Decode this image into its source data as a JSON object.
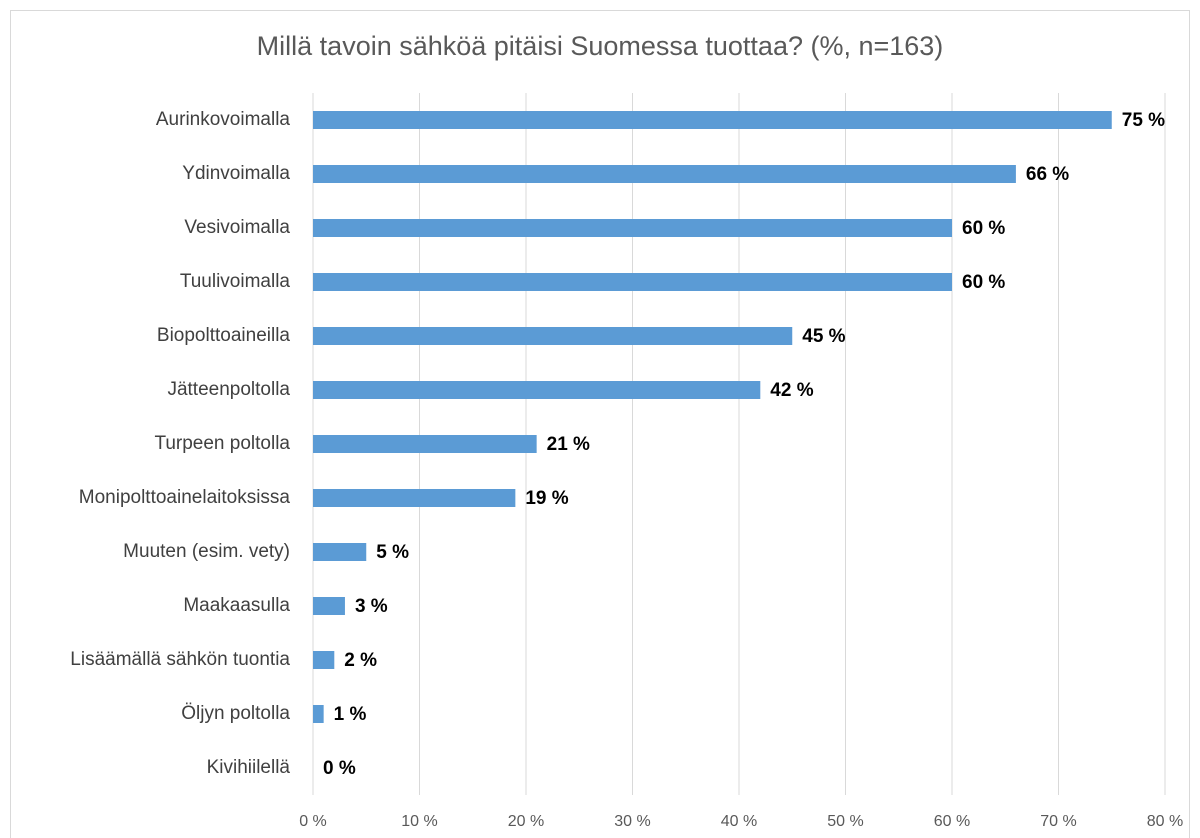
{
  "chart_data": {
    "type": "barh",
    "title": "Millä tavoin sähköä pitäisi Suomessa tuottaa? (%, n=163)",
    "categories": [
      "Aurinkovoimalla",
      "Ydinvoimalla",
      "Vesivoimalla",
      "Tuulivoimalla",
      "Biopolttoaineilla",
      "Jätteenpoltolla",
      "Turpeen poltolla",
      "Monipolttoainelaitoksissa",
      "Muuten (esim. vety)",
      "Maakaasulla",
      "Lisäämällä sähkön tuontia",
      "Öljyn poltolla",
      "Kivihiilellä"
    ],
    "values": [
      75,
      66,
      60,
      60,
      45,
      42,
      21,
      19,
      5,
      3,
      2,
      1,
      0
    ],
    "value_labels": [
      "75 %",
      "66 %",
      "60 %",
      "60 %",
      "45 %",
      "42 %",
      "21 %",
      "19 %",
      "5 %",
      "3 %",
      "2 %",
      "1 %",
      "0 %"
    ],
    "color": "#5b9bd5",
    "xlim": [
      0,
      80
    ],
    "xticks": [
      {
        "value": 0,
        "label": "0 %"
      },
      {
        "value": 10,
        "label": "10 %"
      },
      {
        "value": 20,
        "label": "20 %"
      },
      {
        "value": 30,
        "label": "30 %"
      },
      {
        "value": 40,
        "label": "40 %"
      },
      {
        "value": 50,
        "label": "50 %"
      },
      {
        "value": 60,
        "label": "60 %"
      },
      {
        "value": 70,
        "label": "70 %"
      },
      {
        "value": 80,
        "label": "80 %"
      }
    ],
    "grid": true
  }
}
